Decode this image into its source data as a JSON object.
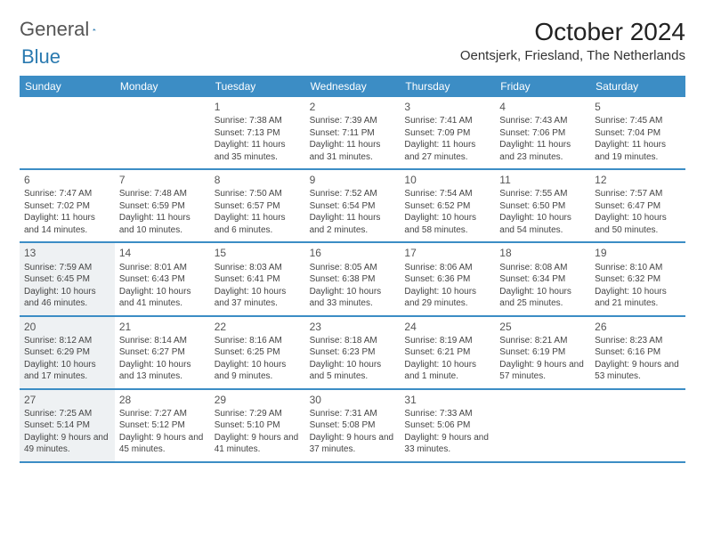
{
  "brand": {
    "part1": "General",
    "part2": "Blue"
  },
  "title": "October 2024",
  "location": "Oentsjerk, Friesland, The Netherlands",
  "colors": {
    "header_bg": "#3c8dc5",
    "header_text": "#ffffff",
    "row_border": "#3c8dc5",
    "shaded_bg": "#eef1f3",
    "text": "#444444",
    "brand_blue": "#2a7ab0"
  },
  "dow": [
    "Sunday",
    "Monday",
    "Tuesday",
    "Wednesday",
    "Thursday",
    "Friday",
    "Saturday"
  ],
  "weeks": [
    [
      {
        "empty": true
      },
      {
        "empty": true
      },
      {
        "n": "1",
        "sr": "7:38 AM",
        "ss": "7:13 PM",
        "dl": "11 hours and 35 minutes."
      },
      {
        "n": "2",
        "sr": "7:39 AM",
        "ss": "7:11 PM",
        "dl": "11 hours and 31 minutes."
      },
      {
        "n": "3",
        "sr": "7:41 AM",
        "ss": "7:09 PM",
        "dl": "11 hours and 27 minutes."
      },
      {
        "n": "4",
        "sr": "7:43 AM",
        "ss": "7:06 PM",
        "dl": "11 hours and 23 minutes."
      },
      {
        "n": "5",
        "sr": "7:45 AM",
        "ss": "7:04 PM",
        "dl": "11 hours and 19 minutes."
      }
    ],
    [
      {
        "n": "6",
        "sr": "7:47 AM",
        "ss": "7:02 PM",
        "dl": "11 hours and 14 minutes."
      },
      {
        "n": "7",
        "sr": "7:48 AM",
        "ss": "6:59 PM",
        "dl": "11 hours and 10 minutes."
      },
      {
        "n": "8",
        "sr": "7:50 AM",
        "ss": "6:57 PM",
        "dl": "11 hours and 6 minutes."
      },
      {
        "n": "9",
        "sr": "7:52 AM",
        "ss": "6:54 PM",
        "dl": "11 hours and 2 minutes."
      },
      {
        "n": "10",
        "sr": "7:54 AM",
        "ss": "6:52 PM",
        "dl": "10 hours and 58 minutes."
      },
      {
        "n": "11",
        "sr": "7:55 AM",
        "ss": "6:50 PM",
        "dl": "10 hours and 54 minutes."
      },
      {
        "n": "12",
        "sr": "7:57 AM",
        "ss": "6:47 PM",
        "dl": "10 hours and 50 minutes."
      }
    ],
    [
      {
        "n": "13",
        "sr": "7:59 AM",
        "ss": "6:45 PM",
        "dl": "10 hours and 46 minutes.",
        "shaded": true
      },
      {
        "n": "14",
        "sr": "8:01 AM",
        "ss": "6:43 PM",
        "dl": "10 hours and 41 minutes."
      },
      {
        "n": "15",
        "sr": "8:03 AM",
        "ss": "6:41 PM",
        "dl": "10 hours and 37 minutes."
      },
      {
        "n": "16",
        "sr": "8:05 AM",
        "ss": "6:38 PM",
        "dl": "10 hours and 33 minutes."
      },
      {
        "n": "17",
        "sr": "8:06 AM",
        "ss": "6:36 PM",
        "dl": "10 hours and 29 minutes."
      },
      {
        "n": "18",
        "sr": "8:08 AM",
        "ss": "6:34 PM",
        "dl": "10 hours and 25 minutes."
      },
      {
        "n": "19",
        "sr": "8:10 AM",
        "ss": "6:32 PM",
        "dl": "10 hours and 21 minutes."
      }
    ],
    [
      {
        "n": "20",
        "sr": "8:12 AM",
        "ss": "6:29 PM",
        "dl": "10 hours and 17 minutes.",
        "shaded": true
      },
      {
        "n": "21",
        "sr": "8:14 AM",
        "ss": "6:27 PM",
        "dl": "10 hours and 13 minutes."
      },
      {
        "n": "22",
        "sr": "8:16 AM",
        "ss": "6:25 PM",
        "dl": "10 hours and 9 minutes."
      },
      {
        "n": "23",
        "sr": "8:18 AM",
        "ss": "6:23 PM",
        "dl": "10 hours and 5 minutes."
      },
      {
        "n": "24",
        "sr": "8:19 AM",
        "ss": "6:21 PM",
        "dl": "10 hours and 1 minute."
      },
      {
        "n": "25",
        "sr": "8:21 AM",
        "ss": "6:19 PM",
        "dl": "9 hours and 57 minutes."
      },
      {
        "n": "26",
        "sr": "8:23 AM",
        "ss": "6:16 PM",
        "dl": "9 hours and 53 minutes."
      }
    ],
    [
      {
        "n": "27",
        "sr": "7:25 AM",
        "ss": "5:14 PM",
        "dl": "9 hours and 49 minutes.",
        "shaded": true
      },
      {
        "n": "28",
        "sr": "7:27 AM",
        "ss": "5:12 PM",
        "dl": "9 hours and 45 minutes."
      },
      {
        "n": "29",
        "sr": "7:29 AM",
        "ss": "5:10 PM",
        "dl": "9 hours and 41 minutes."
      },
      {
        "n": "30",
        "sr": "7:31 AM",
        "ss": "5:08 PM",
        "dl": "9 hours and 37 minutes."
      },
      {
        "n": "31",
        "sr": "7:33 AM",
        "ss": "5:06 PM",
        "dl": "9 hours and 33 minutes."
      },
      {
        "empty": true
      },
      {
        "empty": true
      }
    ]
  ],
  "labels": {
    "sunrise": "Sunrise:",
    "sunset": "Sunset:",
    "daylight": "Daylight:"
  }
}
